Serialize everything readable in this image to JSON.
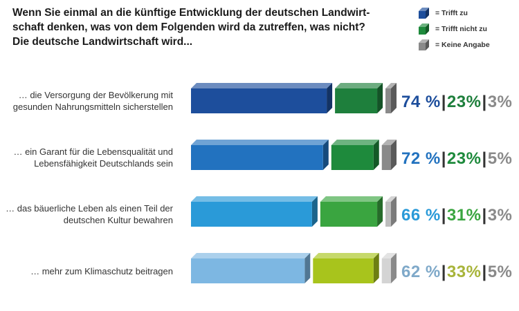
{
  "title_lines": [
    "Wenn Sie einmal an die künftige Entwicklung der deutschen Landwirt-",
    "schaft denken, was von dem Folgenden wird da zutreffen, was nicht?",
    "Die deutsche Landwirtschaft wird..."
  ],
  "legend": [
    {
      "label": "= Trifft zu",
      "color": "#1d4e9c"
    },
    {
      "label": "= Trifft nicht zu",
      "color": "#1e8a3c"
    },
    {
      "label": "= Keine Angabe",
      "color": "#8a8a8a"
    }
  ],
  "separator": "|",
  "chart_data": {
    "type": "bar",
    "stacked": true,
    "orientation": "horizontal",
    "value_unit": "%",
    "categories": [
      "… die Versorgung der Bevölkerung mit gesunden Nahrungsmitteln sicherstellen",
      "… ein Garant für die Lebensqualität und Lebensfähigkeit Deutschlands sein",
      "… das bäuerliche Leben als einen Teil der deutschen Kultur bewahren",
      "… mehr zum Klimaschutz beitragen"
    ],
    "category_lines": [
      [
        "… die Versorgung der Bevölkerung mit",
        "gesunden Nahrungsmitteln sicherstellen"
      ],
      [
        "… ein Garant für die Lebensqualität und",
        "Lebensfähigkeit Deutschlands sein"
      ],
      [
        "… das bäuerliche Leben als einen Teil der",
        "deutschen Kultur bewahren"
      ],
      [
        "… mehr zum Klimaschutz beitragen"
      ]
    ],
    "series": [
      {
        "name": "Trifft zu",
        "values": [
          74,
          72,
          66,
          62
        ],
        "colors": [
          "#1d4e9c",
          "#2272bf",
          "#2a9ad8",
          "#7db7e2"
        ]
      },
      {
        "name": "Trifft nicht zu",
        "values": [
          23,
          23,
          31,
          33
        ],
        "colors": [
          "#1e7f3c",
          "#1e8a3c",
          "#3aa540",
          "#a8c41c"
        ]
      },
      {
        "name": "Keine Angabe",
        "values": [
          3,
          5,
          3,
          5
        ],
        "colors": [
          "#8a8a8a",
          "#8a8a8a",
          "#bdbdbd",
          "#d4d4d4"
        ]
      }
    ],
    "value_labels": [
      [
        "74 %",
        "23%",
        "3%"
      ],
      [
        "72 %",
        "23%",
        "5%"
      ],
      [
        "66 %",
        "31%",
        "3%"
      ],
      [
        "62 %",
        "33%",
        "5%"
      ]
    ],
    "label_colors": [
      [
        "#1d4e9c",
        "#1e7f3c",
        "#8a8a8a"
      ],
      [
        "#2272bf",
        "#1e8a3c",
        "#8a8a8a"
      ],
      [
        "#2a9ad8",
        "#3aa540",
        "#8a8a8a"
      ],
      [
        "#7fa9c9",
        "#a8b43a",
        "#8a8a8a"
      ]
    ]
  }
}
